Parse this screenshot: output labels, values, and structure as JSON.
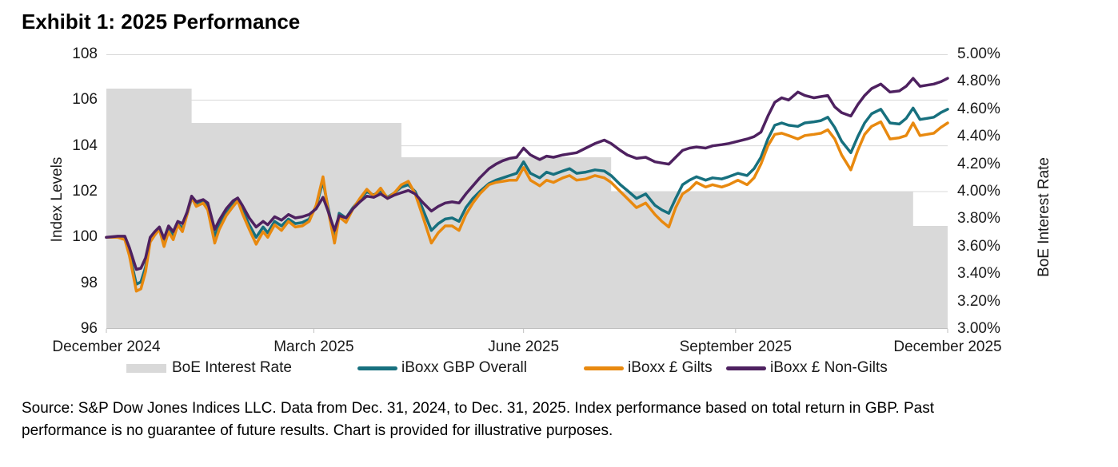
{
  "title": "Exhibit 1: 2025 Performance",
  "axes": {
    "left": {
      "title": "Index Levels"
    },
    "right": {
      "title": "BoE Interest Rate"
    }
  },
  "legend": [
    {
      "label": "BoE Interest Rate",
      "swatch": "area",
      "color": "#d9d9d9"
    },
    {
      "label": "iBoxx GBP Overall",
      "swatch": "line",
      "color": "#17707e"
    },
    {
      "label": "iBoxx £ Gilts",
      "swatch": "line",
      "color": "#e8890f"
    },
    {
      "label": "iBoxx £ Non-Gilts",
      "swatch": "line",
      "color": "#4e2160"
    }
  ],
  "source": {
    "line1": "Source: S&P Dow Jones Indices LLC.  Data from Dec. 31, 2024, to Dec. 31, 2025.  Index performance based on total return in GBP.  Past",
    "line2": "performance is no guarantee of future results.  Chart is provided for illustrative purposes."
  },
  "chart_data": {
    "type": "line",
    "title": "Exhibit 1: 2025 Performance",
    "grid": "horizontal",
    "legend_position": "bottom",
    "x_axis": {
      "unit": "days since Dec. 31, 2024",
      "span_days": 365,
      "tick_days": [
        0,
        90,
        181,
        273,
        365
      ],
      "labels": [
        "December 2024",
        "March 2025",
        "June 2025",
        "September 2025",
        "December 2025"
      ]
    },
    "y_left": {
      "label": "Index Levels",
      "min": 96,
      "max": 108,
      "tick_step": 2,
      "ticks": [
        "108",
        "106",
        "104",
        "102",
        "100",
        "98",
        "96"
      ]
    },
    "y_right": {
      "label": "BoE Interest Rate",
      "min": 3.0,
      "max": 5.0,
      "tick_step": 0.2,
      "ticks": [
        "5.00%",
        "4.80%",
        "4.60%",
        "4.40%",
        "4.20%",
        "4.00%",
        "3.80%",
        "3.60%",
        "3.40%",
        "3.20%",
        "3.00%"
      ]
    },
    "boe_rate_steps": [
      {
        "start_day": 0,
        "end_day": 37,
        "rate_pct": 4.75
      },
      {
        "start_day": 37,
        "end_day": 128,
        "rate_pct": 4.5
      },
      {
        "start_day": 128,
        "end_day": 219,
        "rate_pct": 4.25
      },
      {
        "start_day": 219,
        "end_day": 350,
        "rate_pct": 4.0
      },
      {
        "start_day": 350,
        "end_day": 365,
        "rate_pct": 3.75
      }
    ],
    "days": [
      0,
      5,
      8,
      10,
      13,
      15,
      17,
      19,
      21,
      23,
      25,
      27,
      29,
      31,
      33,
      35,
      37,
      39,
      42,
      44,
      47,
      49,
      52,
      55,
      57,
      59,
      62,
      65,
      68,
      70,
      73,
      76,
      79,
      82,
      85,
      88,
      91,
      94,
      96,
      99,
      101,
      104,
      107,
      110,
      113,
      116,
      119,
      122,
      125,
      128,
      131,
      134,
      137,
      141,
      144,
      147,
      150,
      153,
      156,
      159,
      162,
      166,
      169,
      172,
      175,
      178,
      181,
      184,
      188,
      191,
      194,
      198,
      201,
      204,
      208,
      212,
      216,
      219,
      223,
      226,
      230,
      234,
      238,
      241,
      244,
      247,
      250,
      253,
      256,
      260,
      263,
      267,
      270,
      274,
      278,
      281,
      284,
      287,
      290,
      293,
      296,
      300,
      303,
      307,
      310,
      313,
      316,
      319,
      323,
      326,
      329,
      332,
      336,
      340,
      344,
      347,
      350,
      353,
      356,
      359,
      362,
      365
    ],
    "series": [
      {
        "name": "iBoxx GBP Overall",
        "color": "#17707e",
        "axis": "left",
        "values": [
          100.0,
          100.0,
          99.95,
          99.3,
          97.95,
          98.05,
          98.7,
          99.9,
          100.15,
          100.4,
          99.75,
          100.35,
          100.05,
          100.6,
          100.4,
          101.0,
          101.7,
          101.45,
          101.55,
          101.35,
          100.05,
          100.55,
          101.05,
          101.45,
          101.62,
          101.2,
          100.55,
          100.0,
          100.45,
          100.2,
          100.7,
          100.5,
          100.8,
          100.6,
          100.65,
          100.8,
          101.35,
          102.45,
          101.4,
          99.95,
          101.05,
          100.85,
          101.3,
          101.65,
          102.0,
          101.85,
          102.05,
          101.75,
          101.95,
          102.2,
          102.3,
          102.0,
          101.3,
          100.3,
          100.6,
          100.8,
          100.85,
          100.7,
          101.3,
          101.7,
          102.0,
          102.35,
          102.5,
          102.6,
          102.7,
          102.8,
          103.3,
          102.8,
          102.6,
          102.85,
          102.75,
          102.9,
          103.0,
          102.8,
          102.85,
          102.95,
          102.9,
          102.7,
          102.3,
          102.05,
          101.7,
          101.9,
          101.4,
          101.2,
          101.05,
          101.7,
          102.3,
          102.5,
          102.65,
          102.5,
          102.6,
          102.55,
          102.65,
          102.8,
          102.7,
          103.0,
          103.5,
          104.3,
          104.9,
          105.0,
          104.9,
          104.85,
          105.0,
          105.05,
          105.1,
          105.25,
          104.8,
          104.2,
          103.7,
          104.4,
          105.0,
          105.4,
          105.6,
          105.0,
          104.95,
          105.2,
          105.65,
          105.15,
          105.2,
          105.25,
          105.45,
          105.6
        ]
      },
      {
        "name": "iBoxx £ Gilts",
        "color": "#e8890f",
        "axis": "left",
        "values": [
          100.0,
          100.0,
          99.9,
          99.2,
          97.65,
          97.75,
          98.5,
          99.8,
          100.1,
          100.35,
          99.6,
          100.25,
          99.9,
          100.55,
          100.25,
          101.0,
          101.75,
          101.35,
          101.5,
          101.2,
          99.75,
          100.35,
          100.95,
          101.35,
          101.6,
          101.05,
          100.35,
          99.7,
          100.25,
          100.0,
          100.55,
          100.3,
          100.7,
          100.45,
          100.5,
          100.7,
          101.4,
          102.65,
          101.3,
          99.75,
          100.9,
          100.65,
          101.25,
          101.7,
          102.1,
          101.8,
          102.15,
          101.7,
          101.95,
          102.3,
          102.45,
          101.9,
          101.0,
          99.75,
          100.2,
          100.5,
          100.5,
          100.3,
          101.0,
          101.5,
          101.9,
          102.3,
          102.4,
          102.45,
          102.5,
          102.5,
          103.05,
          102.5,
          102.25,
          102.5,
          102.4,
          102.6,
          102.7,
          102.5,
          102.55,
          102.7,
          102.6,
          102.4,
          102.0,
          101.7,
          101.3,
          101.5,
          101.0,
          100.7,
          100.45,
          101.3,
          101.9,
          102.1,
          102.4,
          102.2,
          102.3,
          102.2,
          102.3,
          102.5,
          102.3,
          102.6,
          103.2,
          104.0,
          104.5,
          104.55,
          104.45,
          104.3,
          104.45,
          104.5,
          104.55,
          104.7,
          104.3,
          103.6,
          102.95,
          103.8,
          104.5,
          104.85,
          105.05,
          104.3,
          104.35,
          104.45,
          105.0,
          104.45,
          104.5,
          104.55,
          104.8,
          105.0
        ]
      },
      {
        "name": "iBoxx £ Non-Gilts",
        "color": "#4e2160",
        "axis": "left",
        "values": [
          100.0,
          100.05,
          100.05,
          99.55,
          98.6,
          98.65,
          99.1,
          100.0,
          100.25,
          100.45,
          99.95,
          100.5,
          100.25,
          100.7,
          100.6,
          101.1,
          101.8,
          101.55,
          101.65,
          101.5,
          100.35,
          100.75,
          101.25,
          101.6,
          101.72,
          101.4,
          100.85,
          100.45,
          100.7,
          100.55,
          100.9,
          100.75,
          101.0,
          100.85,
          100.9,
          101.0,
          101.25,
          101.75,
          101.2,
          100.3,
          100.95,
          100.85,
          101.25,
          101.55,
          101.8,
          101.75,
          101.9,
          101.7,
          101.85,
          101.95,
          102.05,
          101.9,
          101.55,
          101.15,
          101.35,
          101.5,
          101.55,
          101.5,
          101.9,
          102.25,
          102.6,
          103.0,
          103.2,
          103.35,
          103.45,
          103.5,
          103.9,
          103.6,
          103.4,
          103.55,
          103.5,
          103.6,
          103.65,
          103.7,
          103.9,
          104.1,
          104.25,
          104.1,
          103.8,
          103.6,
          103.45,
          103.5,
          103.3,
          103.25,
          103.2,
          103.5,
          103.8,
          103.9,
          103.95,
          103.9,
          104.0,
          104.05,
          104.1,
          104.2,
          104.3,
          104.4,
          104.6,
          105.3,
          105.9,
          106.1,
          106.0,
          106.35,
          106.2,
          106.1,
          106.15,
          106.2,
          105.7,
          105.45,
          105.3,
          105.8,
          106.2,
          106.5,
          106.7,
          106.35,
          106.4,
          106.6,
          106.95,
          106.6,
          106.65,
          106.7,
          106.8,
          106.95
        ]
      }
    ]
  }
}
